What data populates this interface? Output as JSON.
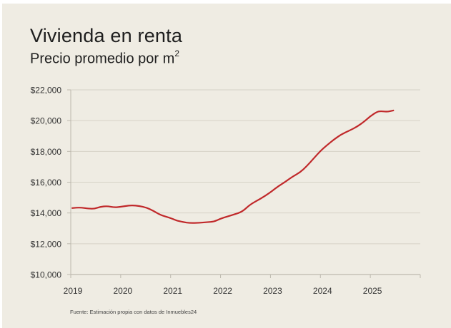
{
  "chart_data": {
    "type": "line",
    "title": "Vivienda en renta",
    "subtitle_text": "Precio promedio por m",
    "subtitle_superscript": "2",
    "xlabel": "",
    "ylabel": "",
    "source": "Fuente: Estimación propia con datos de Inmuebles24",
    "x_tick_labels": [
      "2019",
      "2020",
      "2021",
      "2022",
      "2023",
      "2024",
      "2025"
    ],
    "xlim": [
      2019,
      2026
    ],
    "y_tick_values": [
      10000,
      12000,
      14000,
      16000,
      18000,
      20000,
      22000
    ],
    "y_tick_labels": [
      "$10,000",
      "$12,000",
      "$14,000",
      "$16,000",
      "$18,000",
      "$20,000",
      "$22,000"
    ],
    "ylim": [
      10000,
      22000
    ],
    "grid": true,
    "line_color": "#c0282a",
    "series": [
      {
        "name": "Precio promedio por m2",
        "points": [
          [
            2019.03,
            14320
          ],
          [
            2019.19,
            14360
          ],
          [
            2019.37,
            14280
          ],
          [
            2019.47,
            14270
          ],
          [
            2019.59,
            14400
          ],
          [
            2019.73,
            14450
          ],
          [
            2019.87,
            14360
          ],
          [
            2020.0,
            14400
          ],
          [
            2020.09,
            14450
          ],
          [
            2020.23,
            14500
          ],
          [
            2020.37,
            14450
          ],
          [
            2020.51,
            14360
          ],
          [
            2020.66,
            14130
          ],
          [
            2020.8,
            13860
          ],
          [
            2021.0,
            13670
          ],
          [
            2021.13,
            13490
          ],
          [
            2021.27,
            13400
          ],
          [
            2021.37,
            13350
          ],
          [
            2021.51,
            13350
          ],
          [
            2021.73,
            13400
          ],
          [
            2021.87,
            13440
          ],
          [
            2022.0,
            13630
          ],
          [
            2022.13,
            13760
          ],
          [
            2022.27,
            13900
          ],
          [
            2022.44,
            14090
          ],
          [
            2022.59,
            14550
          ],
          [
            2022.8,
            14920
          ],
          [
            2023.0,
            15340
          ],
          [
            2023.16,
            15750
          ],
          [
            2023.3,
            16030
          ],
          [
            2023.44,
            16360
          ],
          [
            2023.59,
            16630
          ],
          [
            2023.73,
            17050
          ],
          [
            2023.87,
            17560
          ],
          [
            2024.0,
            18030
          ],
          [
            2024.13,
            18400
          ],
          [
            2024.27,
            18770
          ],
          [
            2024.41,
            19090
          ],
          [
            2024.59,
            19370
          ],
          [
            2024.73,
            19600
          ],
          [
            2024.87,
            19920
          ],
          [
            2025.0,
            20290
          ],
          [
            2025.13,
            20570
          ],
          [
            2025.21,
            20620
          ],
          [
            2025.33,
            20570
          ],
          [
            2025.46,
            20660
          ]
        ]
      }
    ]
  }
}
